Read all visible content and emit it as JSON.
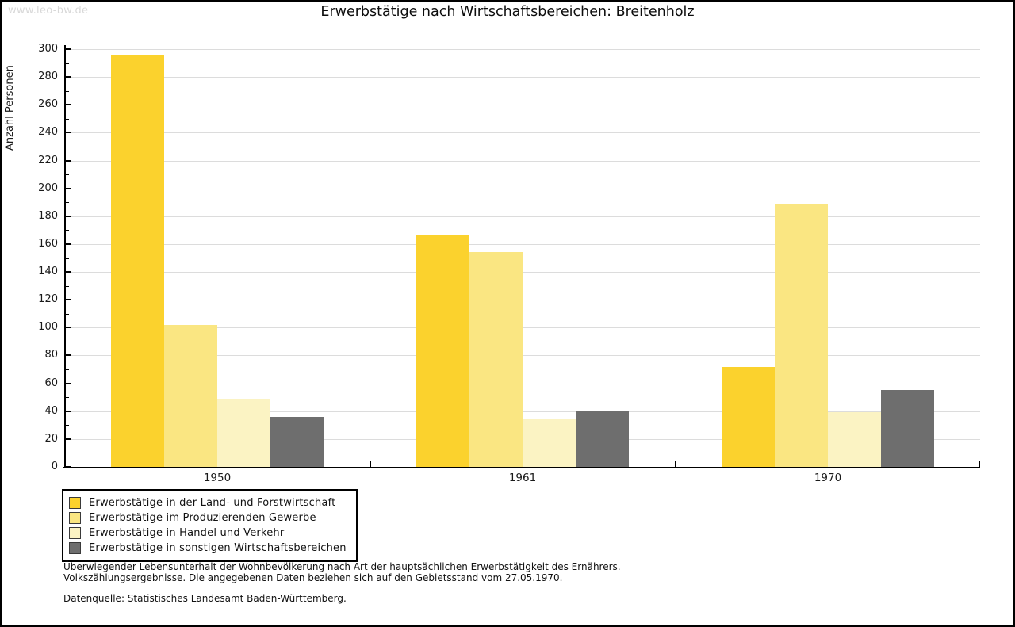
{
  "watermark": "www.leo-bw.de",
  "title": "Erwerbstätige nach Wirtschaftsbereichen: Breitenholz",
  "footer": {
    "line1": "Überwiegender Lebensunterhalt der Wohnbevölkerung nach Art der hauptsächlichen Erwerbstätigkeit des Ernährers.",
    "line2": "Volkszählungsergebnisse. Die angegebenen Daten beziehen sich auf den Gebietsstand vom 27.05.1970.",
    "source": "Datenquelle: Statistisches Landesamt Baden-Württemberg."
  },
  "colors": {
    "grid": "#dcdcdc",
    "axis": "#000000",
    "watermark": "#d8d8d8",
    "background": "#ffffff"
  },
  "chart_data": {
    "type": "bar",
    "title": "Erwerbstätige nach Wirtschaftsbereichen: Breitenholz",
    "xlabel": "",
    "ylabel": "Anzahl Personen",
    "categories": [
      "1950",
      "1961",
      "1970"
    ],
    "series": [
      {
        "name": "Erwerbstätige in der Land- und Forstwirtschaft",
        "color": "#FBD22D",
        "values": [
          296,
          166,
          72
        ]
      },
      {
        "name": "Erwerbstätige im Produzierenden Gewerbe",
        "color": "#FAE682",
        "values": [
          102,
          154,
          189
        ]
      },
      {
        "name": "Erwerbstätige in Handel und Verkehr",
        "color": "#FBF3C3",
        "values": [
          49,
          35,
          39
        ]
      },
      {
        "name": "Erwerbstätige in sonstigen Wirtschaftsbereichen",
        "color": "#6E6E6E",
        "values": [
          36,
          40,
          55
        ]
      }
    ],
    "ylim": [
      0,
      300
    ],
    "ytick_step": 20,
    "minor_tick_step": 10,
    "grid": true,
    "legend_position": "bottom-left"
  }
}
